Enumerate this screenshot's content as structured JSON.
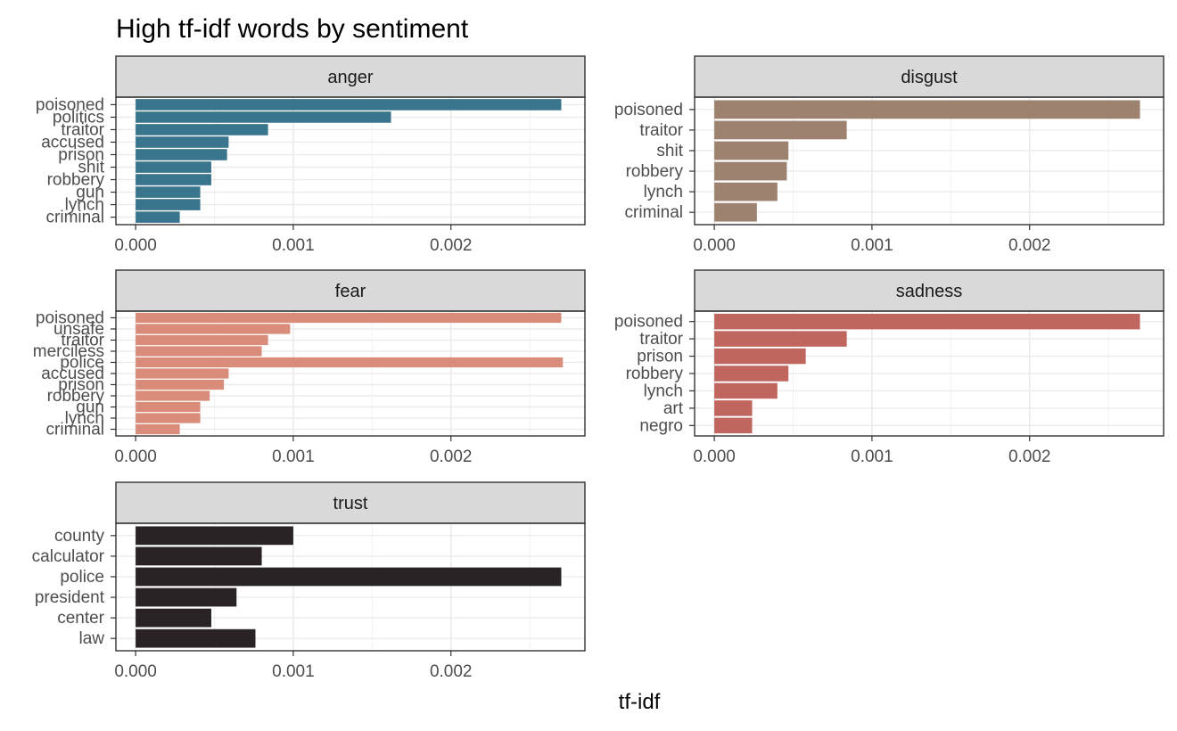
{
  "chart_data": {
    "type": "bar",
    "orientation": "horizontal",
    "title": "High tf-idf words by sentiment",
    "xlabel": "tf-idf",
    "xlim": [
      -0.000125,
      0.00285
    ],
    "xticks": [
      "0.000",
      "0.001",
      "0.002"
    ],
    "xtick_values": [
      0,
      0.001,
      0.002
    ],
    "grid": true,
    "panels": [
      {
        "name": "anger",
        "color": "#3A758E",
        "categories": [
          "poisoned",
          "politics",
          "traitor",
          "accused",
          "prison",
          "shit",
          "robbery",
          "gun",
          "lynch",
          "criminal"
        ],
        "values": [
          0.0027,
          0.00162,
          0.00084,
          0.00059,
          0.00058,
          0.00048,
          0.00048,
          0.00041,
          0.00041,
          0.00028
        ]
      },
      {
        "name": "disgust",
        "color": "#9C826F",
        "categories": [
          "poisoned",
          "traitor",
          "shit",
          "robbery",
          "lynch",
          "criminal"
        ],
        "values": [
          0.0027,
          0.00084,
          0.00047,
          0.00046,
          0.0004,
          0.00027
        ]
      },
      {
        "name": "fear",
        "color": "#D98C7A",
        "categories": [
          "poisoned",
          "unsafe",
          "traitor",
          "merciless",
          "police",
          "accused",
          "prison",
          "robbery",
          "gun",
          "lynch",
          "criminal"
        ],
        "values": [
          0.0027,
          0.00098,
          0.00084,
          0.0008,
          0.00271,
          0.00059,
          0.00056,
          0.00047,
          0.00041,
          0.00041,
          0.00028
        ]
      },
      {
        "name": "sadness",
        "color": "#C0665E",
        "categories": [
          "poisoned",
          "traitor",
          "prison",
          "robbery",
          "lynch",
          "art",
          "negro"
        ],
        "values": [
          0.0027,
          0.00084,
          0.00058,
          0.00047,
          0.0004,
          0.00024,
          0.00024
        ]
      },
      {
        "name": "trust",
        "color": "#2A2325",
        "categories": [
          "county",
          "calculator",
          "police",
          "president",
          "center",
          "law"
        ],
        "values": [
          0.001,
          0.0008,
          0.0027,
          0.00064,
          0.00048,
          0.00076
        ]
      }
    ]
  }
}
